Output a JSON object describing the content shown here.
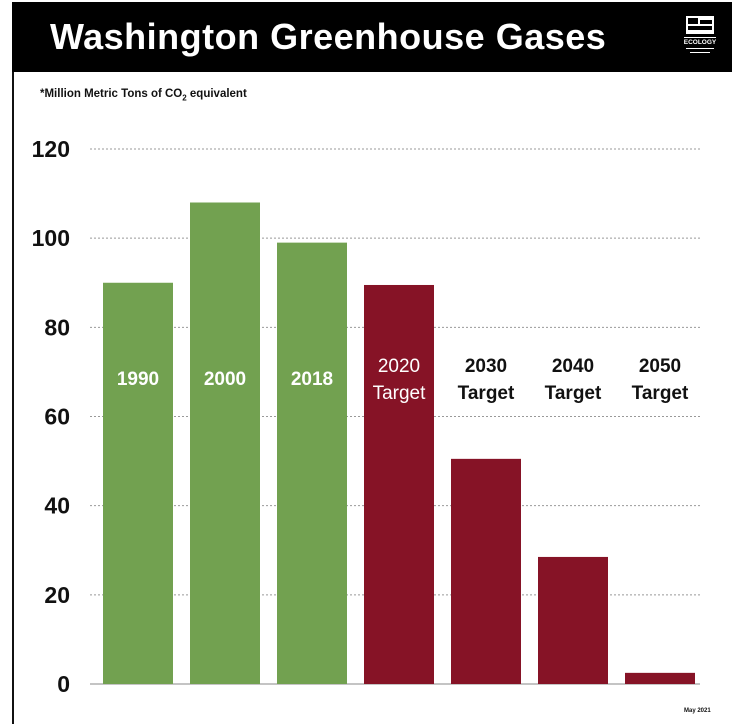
{
  "header": {
    "title": "Washington Greenhouse Gases",
    "logo_text": "ECOLOGY"
  },
  "subtitle_prefix": "*Million Metric Tons of CO",
  "subtitle_sub": "2",
  "subtitle_suffix": " equivalent",
  "footnote": "May 2021",
  "colors": {
    "historical": "#72A150",
    "target": "#861326",
    "grid": "#999999",
    "label_on_bar": "#ffffff",
    "label_above_bar": "#111111"
  },
  "chart_data": {
    "type": "bar",
    "title": "Washington Greenhouse Gases",
    "ylabel": "",
    "xlabel": "",
    "ylim": [
      0,
      120
    ],
    "yticks": [
      0,
      20,
      40,
      60,
      80,
      100,
      120
    ],
    "grid": true,
    "categories": [
      "1990",
      "2000",
      "2018",
      "2020 Target",
      "2030 Target",
      "2040 Target",
      "2050 Target"
    ],
    "values": [
      90,
      108,
      99,
      89.5,
      50.5,
      28.5,
      2.5
    ],
    "bar_kind": [
      "historical",
      "historical",
      "historical",
      "target",
      "target",
      "target",
      "target"
    ],
    "bar_labels": [
      [
        "1990"
      ],
      [
        "2000"
      ],
      [
        "2018"
      ],
      [
        "2020",
        "Target"
      ],
      [
        "2030",
        "Target"
      ],
      [
        "2040",
        "Target"
      ],
      [
        "2050",
        "Target"
      ]
    ]
  }
}
